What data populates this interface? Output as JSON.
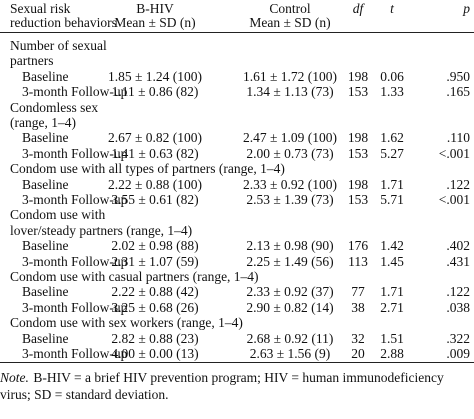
{
  "header": {
    "label_lines": [
      "Sexual risk",
      "reduction behaviors"
    ],
    "columns": [
      [
        "B-HIV",
        "Mean ± SD (n)"
      ],
      [
        "Control",
        "Mean ± SD (n)"
      ],
      [
        "df"
      ],
      [
        "t"
      ],
      [
        "p"
      ]
    ]
  },
  "groups": [
    {
      "title_lines": [
        "Number of sexual",
        "partners"
      ],
      "rows": [
        [
          "Baseline",
          "1.85 ± 1.24 (100)",
          "1.61 ± 1.72 (100)",
          "198",
          "0.06",
          ".950"
        ],
        [
          "3-month Follow-up",
          "1.11 ± 0.86 (82)",
          "1.34 ± 1.13 (73)",
          "153",
          "1.33",
          ".165"
        ]
      ]
    },
    {
      "title_lines": [
        "Condomless sex",
        "(range, 1–4)"
      ],
      "rows": [
        [
          "Baseline",
          "2.67 ± 0.82 (100)",
          "2.47 ± 1.09 (100)",
          "198",
          "1.62",
          ".110"
        ],
        [
          "3-month Follow-up",
          "1.41 ± 0.63 (82)",
          "2.00 ± 0.73 (73)",
          "153",
          "5.27",
          "<.001"
        ]
      ]
    },
    {
      "title_lines": [
        "Condom use with all types of partners (range, 1–4)"
      ],
      "rows": [
        [
          "Baseline",
          "2.22 ± 0.88 (100)",
          "2.33 ± 0.92 (100)",
          "198",
          "1.71",
          ".122"
        ],
        [
          "3-month Follow-up",
          "3.55 ± 0.61 (82)",
          "2.53 ± 1.39 (73)",
          "153",
          "5.71",
          "<.001"
        ]
      ]
    },
    {
      "title_lines": [
        "Condom use with",
        "lover/steady partners (range, 1–4)"
      ],
      "rows": [
        [
          "Baseline",
          "2.02 ± 0.98 (88)",
          "2.13 ± 0.98 (90)",
          "176",
          "1.42",
          ".402"
        ],
        [
          "3-month Follow-up",
          "2.31 ± 1.07 (59)",
          "2.25 ± 1.49 (56)",
          "113",
          "1.45",
          ".431"
        ]
      ]
    },
    {
      "title_lines": [
        "Condom use with casual partners (range, 1–4)"
      ],
      "rows": [
        [
          "Baseline",
          "2.22 ± 0.88 (42)",
          "2.33 ± 0.92 (37)",
          "77",
          "1.71",
          ".122"
        ],
        [
          "3-month Follow-up",
          "3.25 ± 0.68 (26)",
          "2.90 ± 0.82 (14)",
          "38",
          "2.71",
          ".038"
        ]
      ]
    },
    {
      "title_lines": [
        "Condom use with sex workers (range, 1–4)"
      ],
      "rows": [
        [
          "Baseline",
          "2.82 ± 0.88 (23)",
          "2.68 ± 0.92 (11)",
          "32",
          "1.51",
          ".322"
        ],
        [
          "3-month Follow-up",
          "4.00 ± 0.00 (13)",
          "2.63 ± 1.56 (9)",
          "20",
          "2.88",
          ".009"
        ]
      ]
    }
  ],
  "note": {
    "label": "Note.",
    "lines": [
      " B-HIV = a brief HIV prevention program; HIV = human immunodeficiency",
      "virus; SD = standard deviation."
    ]
  }
}
